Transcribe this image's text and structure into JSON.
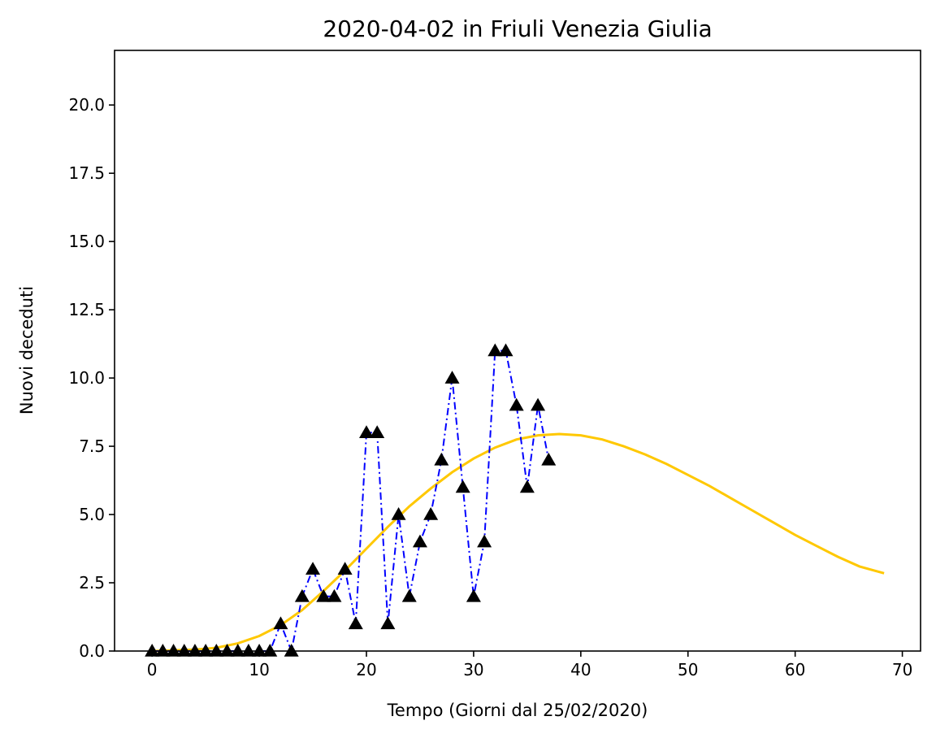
{
  "chart_data": {
    "type": "line",
    "title": "2020-04-02 in Friuli Venezia Giulia",
    "xlabel": "Tempo (Giorni dal 25/02/2020)",
    "ylabel": "Nuovi deceduti",
    "xlim": [
      -3.5,
      71.7
    ],
    "ylim": [
      0,
      22
    ],
    "xticks": [
      0,
      10,
      20,
      30,
      40,
      50,
      60,
      70
    ],
    "xtick_labels": [
      "0",
      "10",
      "20",
      "30",
      "40",
      "50",
      "60",
      "70"
    ],
    "yticks": [
      0,
      2.5,
      5,
      7.5,
      10,
      12.5,
      15,
      17.5,
      20
    ],
    "ytick_labels": [
      "0.0",
      "2.5",
      "5.0",
      "7.5",
      "10.0",
      "12.5",
      "15.0",
      "17.5",
      "20.0"
    ],
    "grid": false,
    "series": [
      {
        "style": "dash-dot line with triangle markers",
        "line_color": "#0000ff",
        "marker_color": "#000000",
        "x": [
          0,
          1,
          2,
          3,
          4,
          5,
          6,
          7,
          8,
          9,
          10,
          11,
          12,
          13,
          14,
          15,
          16,
          17,
          18,
          19,
          20,
          21,
          22,
          23,
          24,
          25,
          26,
          27,
          28,
          29,
          30,
          31,
          32,
          33,
          34,
          35,
          36,
          37
        ],
        "values": [
          0,
          0,
          0,
          0,
          0,
          0,
          0,
          0,
          0,
          0,
          0,
          0,
          1,
          0,
          2,
          3,
          2,
          2,
          3,
          1,
          8,
          8,
          1,
          5,
          2,
          4,
          5,
          7,
          10,
          6,
          2,
          4,
          11,
          11,
          9,
          6,
          9,
          7
        ]
      },
      {
        "style": "fitted curve",
        "line_color": "#ffc800",
        "x": [
          0,
          4,
          6,
          8,
          10,
          12,
          14,
          16,
          18,
          20,
          22,
          24,
          26,
          28,
          30,
          32,
          34,
          36,
          38,
          40,
          42,
          44,
          46,
          48,
          50,
          52,
          54,
          56,
          58,
          60,
          62,
          64,
          66,
          68.3
        ],
        "values": [
          0,
          0.05,
          0.12,
          0.28,
          0.55,
          0.95,
          1.5,
          2.2,
          2.95,
          3.75,
          4.55,
          5.3,
          5.95,
          6.55,
          7.05,
          7.45,
          7.75,
          7.9,
          7.95,
          7.9,
          7.75,
          7.5,
          7.2,
          6.85,
          6.45,
          6.05,
          5.6,
          5.15,
          4.7,
          4.25,
          3.85,
          3.45,
          3.1,
          2.85
        ]
      }
    ]
  }
}
